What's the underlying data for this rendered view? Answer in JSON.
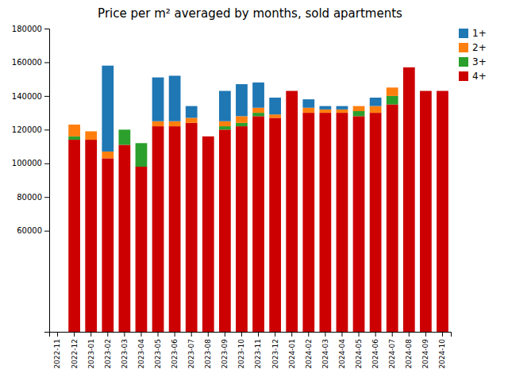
{
  "chart_data": {
    "type": "bar",
    "stacked": true,
    "title": "Price per m² averaged by months, sold apartments",
    "categories": [
      "2022-11",
      "2022-12",
      "2023-01",
      "2023-02",
      "2023-03",
      "2023-04",
      "2023-05",
      "2023-06",
      "2023-07",
      "2023-08",
      "2023-09",
      "2023-10",
      "2023-11",
      "2023-12",
      "2024-01",
      "2024-02",
      "2024-03",
      "2024-04",
      "2024-05",
      "2024-06",
      "2024-07",
      "2024-08",
      "2024-09",
      "2024-10"
    ],
    "series": [
      {
        "name": "1+",
        "color": "#1f77b4",
        "values": [
          0,
          0,
          0,
          51000,
          0,
          0,
          26000,
          27000,
          7000,
          0,
          18000,
          19000,
          15000,
          10000,
          0,
          5000,
          2000,
          2000,
          0,
          5000,
          0,
          0,
          0,
          0
        ]
      },
      {
        "name": "2+",
        "color": "#ff7f0e",
        "values": [
          0,
          7000,
          5000,
          4000,
          0,
          0,
          3000,
          3000,
          3000,
          0,
          3000,
          4000,
          3000,
          2000,
          0,
          3000,
          2000,
          2000,
          3000,
          4000,
          5000,
          0,
          0,
          0
        ]
      },
      {
        "name": "3+",
        "color": "#2ca02c",
        "values": [
          0,
          2000,
          0,
          0,
          9000,
          14000,
          0,
          0,
          0,
          0,
          2000,
          2000,
          2000,
          0,
          0,
          0,
          0,
          0,
          3000,
          0,
          5000,
          0,
          0,
          0
        ]
      },
      {
        "name": "4+",
        "color": "#cc0000",
        "values": [
          0,
          114000,
          114000,
          103000,
          111000,
          98000,
          122000,
          122000,
          124000,
          116000,
          120000,
          122000,
          128000,
          127000,
          143000,
          130000,
          130000,
          130000,
          128000,
          130000,
          135000,
          157000,
          143000,
          143000
        ]
      }
    ],
    "ylim": [
      0,
      180000
    ],
    "yticks": [
      60000,
      80000,
      100000,
      120000,
      140000,
      160000,
      180000
    ],
    "grid": false,
    "legend": "upper right"
  }
}
